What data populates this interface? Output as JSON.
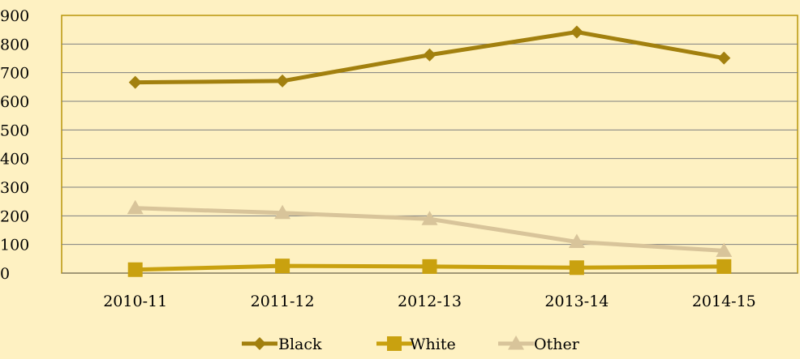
{
  "chart_data": {
    "type": "line",
    "categories": [
      "2010-11",
      "2011-12",
      "2012-13",
      "2013-14",
      "2014-15"
    ],
    "ylim": [
      0,
      900
    ],
    "yticks": [
      0,
      100,
      200,
      300,
      400,
      500,
      600,
      700,
      800,
      900
    ],
    "grid": true,
    "legend_position": "bottom",
    "series": [
      {
        "name": "Black",
        "marker": "diamond",
        "color": "#a2800e",
        "values": [
          666,
          671,
          762,
          842,
          751
        ]
      },
      {
        "name": "White",
        "marker": "square",
        "color": "#c9a10f",
        "values": [
          12,
          25,
          23,
          19,
          23
        ]
      },
      {
        "name": "Other",
        "marker": "triangle",
        "color": "#d8c49a",
        "values": [
          227,
          210,
          189,
          109,
          78
        ]
      }
    ]
  },
  "colors": {
    "background": "#fef1c2",
    "plot_border": "#b8960a",
    "gridline": "#7f7f7f"
  }
}
